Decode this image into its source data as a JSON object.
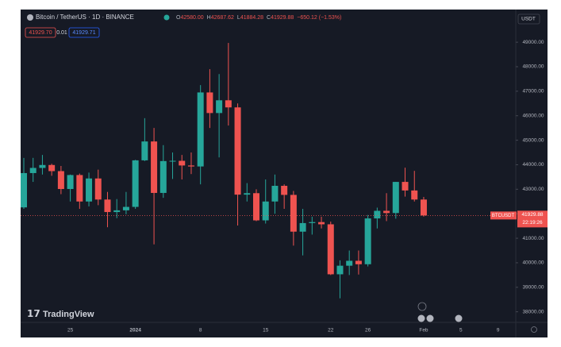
{
  "header": {
    "symbol": "Bitcoin / TetherUS · 1D · BINANCE",
    "ohlc": [
      {
        "label": "O",
        "value": "42580.00"
      },
      {
        "label": "H",
        "value": "42687.62"
      },
      {
        "label": "L",
        "value": "41884.28"
      },
      {
        "label": "C",
        "value": "41929.88"
      }
    ],
    "change": "−650.12 (−1.53%)",
    "sell": "41929.70",
    "spread": "0.01",
    "buy": "41929.71"
  },
  "branding": "TradingView",
  "chart_data": {
    "type": "candlestick",
    "currency": "USDT",
    "categories": [
      null,
      null,
      null,
      null,
      null,
      "25",
      null,
      null,
      null,
      null,
      null,
      null,
      "2024",
      null,
      null,
      null,
      null,
      null,
      null,
      "8",
      null,
      null,
      null,
      null,
      null,
      null,
      "15",
      null,
      null,
      null,
      null,
      null,
      null,
      "22",
      null,
      null,
      null,
      "26",
      null,
      null,
      null,
      null,
      null,
      "Feb",
      null,
      null,
      null,
      "5",
      null,
      null,
      null,
      "9"
    ],
    "open": [
      42260,
      43660,
      43870,
      43990,
      43740,
      43010,
      43580,
      42500,
      43440,
      42580,
      42070,
      42140,
      42280,
      44180,
      44950,
      42850,
      44150,
      44160,
      43970,
      43930,
      46950,
      46110,
      46630,
      46340,
      42780,
      42840,
      41730,
      42500,
      43140,
      42770,
      41270,
      41620,
      41660,
      41570,
      39530,
      39880,
      40080,
      39940,
      41810,
      42120,
      42030,
      43300,
      42950,
      42580,
      null,
      null,
      null,
      null,
      null,
      null,
      null,
      null
    ],
    "high": [
      44280,
      44280,
      44400,
      44040,
      43950,
      43600,
      43640,
      43680,
      43800,
      42890,
      42600,
      42890,
      44200,
      45900,
      45500,
      44800,
      44500,
      44400,
      44500,
      47250,
      47900,
      47700,
      48970,
      46500,
      43250,
      43000,
      43400,
      43600,
      43200,
      42930,
      42200,
      41880,
      41880,
      41680,
      40100,
      40500,
      40500,
      41950,
      42250,
      42840,
      43300,
      43880,
      43750,
      42687.62,
      null,
      null,
      null,
      null,
      null,
      null,
      null,
      null
    ],
    "low": [
      42200,
      43300,
      43600,
      43550,
      42800,
      42500,
      42200,
      42300,
      42350,
      41450,
      41820,
      41980,
      42200,
      44150,
      40750,
      42650,
      43420,
      43400,
      43620,
      43200,
      45500,
      44300,
      45600,
      41520,
      42500,
      41700,
      41600,
      42000,
      42200,
      40700,
      40300,
      41150,
      41400,
      39500,
      38550,
      39500,
      39520,
      39850,
      41400,
      41700,
      41800,
      42700,
      42500,
      41884.28,
      null,
      null,
      null,
      null,
      null,
      null,
      null,
      null
    ],
    "close": [
      43660,
      43870,
      43990,
      43740,
      43010,
      43580,
      42500,
      43440,
      42580,
      42070,
      42140,
      42280,
      44180,
      44950,
      42850,
      44150,
      44160,
      43970,
      43930,
      46950,
      46110,
      46630,
      46340,
      42780,
      42840,
      41730,
      42500,
      43140,
      42770,
      41270,
      41620,
      41660,
      41570,
      39530,
      39880,
      40080,
      39940,
      41810,
      42120,
      42030,
      43300,
      42950,
      42580,
      41929.88,
      null,
      null,
      null,
      null,
      null,
      null,
      null,
      null
    ],
    "up_color": "#26a69a",
    "down_color": "#ef5350",
    "ylim": [
      37600,
      49750
    ],
    "yticks": [
      {
        "value": 38000,
        "label": "38000.00"
      },
      {
        "value": 39000,
        "label": "39000.00"
      },
      {
        "value": 40000,
        "label": "40000.00"
      },
      {
        "value": 41000,
        "label": "41000.00"
      },
      {
        "value": 42000,
        "label": "42000.00"
      },
      {
        "value": 43000,
        "label": "43000.00"
      },
      {
        "value": 44000,
        "label": "44000.00"
      },
      {
        "value": 45000,
        "label": "45000.00"
      },
      {
        "value": 46000,
        "label": "46000.00"
      },
      {
        "value": 47000,
        "label": "47000.00"
      },
      {
        "value": 48000,
        "label": "48000.00"
      },
      {
        "value": 49000,
        "label": "49000.00"
      }
    ],
    "grid": false,
    "price_tag": {
      "symbol": "BTCUSDT",
      "countdown": "22:19:26"
    }
  }
}
